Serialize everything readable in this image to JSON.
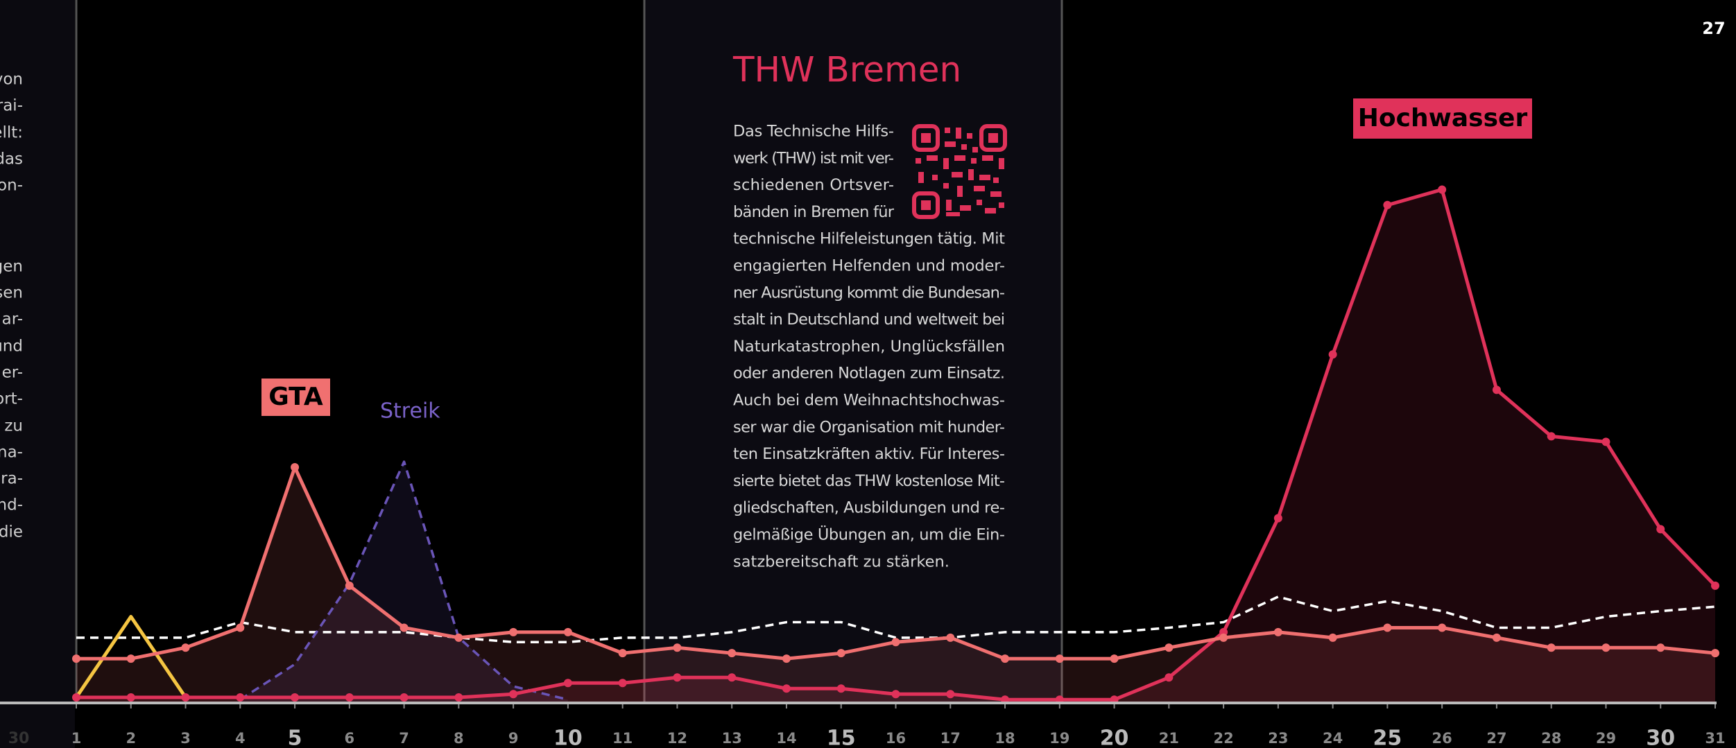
{
  "page_number": "27",
  "previous_axis_label": "30",
  "left_fragments": [
    "von",
    "rai-",
    "ellt:",
    "das",
    "on-",
    "gen",
    "sen",
    "ar-",
    "und",
    "er-",
    "ort-",
    "zu",
    "na-",
    "ra-",
    "nd-",
    "die"
  ],
  "sidebar": {
    "title": "THW Bremen",
    "lines": [
      "Das Technische Hilfs-",
      "werk (THW) ist mit ver-",
      "schiedenen Ortsver-",
      "bänden in Bremen für",
      "technische Hilfeleistungen tätig. Mit",
      "engagierten Helfenden und moder-",
      "ner Ausrüstung kommt die Bundesan-",
      "stalt in Deutschland und weltweit bei",
      "Naturkatastrophen, Unglücksfällen",
      "oder anderen Notlagen zum Einsatz.",
      "Auch bei dem Weihnachtshochwas-",
      "ser war die Organisation mit hunder-",
      "ten Einsatzkräften aktiv. Für Interes-",
      "sierte bietet das THW kostenlose Mit-",
      "gliedschaften, Ausbildungen und re-",
      "gelmäßige Übungen an, um die Ein-",
      "satzbereitschaft zu stärken."
    ]
  },
  "chart_data": {
    "type": "line",
    "annotations": [
      "GTA",
      "Streik",
      "Hochwasser"
    ],
    "x": [
      1,
      2,
      3,
      4,
      5,
      6,
      7,
      8,
      9,
      10,
      11,
      12,
      13,
      14,
      15,
      16,
      17,
      18,
      19,
      20,
      21,
      22,
      23,
      24,
      25,
      26,
      27,
      28,
      29,
      30,
      31
    ],
    "xlim": [
      1,
      31
    ],
    "xticks": [
      1,
      2,
      3,
      4,
      5,
      6,
      7,
      8,
      9,
      10,
      11,
      12,
      13,
      14,
      15,
      16,
      17,
      18,
      19,
      20,
      21,
      22,
      23,
      24,
      25,
      26,
      27,
      28,
      29,
      30,
      31
    ],
    "ylim": [
      0,
      100
    ],
    "series": [
      {
        "color": "#ffffff",
        "dash": true,
        "fill": false,
        "markers": false,
        "values": [
          11.8,
          11.8,
          11.8,
          14.6,
          12.8,
          12.8,
          12.8,
          11.8,
          11,
          11,
          11.8,
          11.8,
          12.8,
          14.6,
          14.6,
          11.8,
          11.8,
          12.8,
          12.8,
          12.8,
          13.6,
          14.6,
          19.2,
          16.6,
          18.4,
          16.6,
          13.6,
          13.6,
          15.6,
          16.6,
          17.4
        ]
      },
      {
        "color": "#f5c542",
        "dash": false,
        "fill": false,
        "markers": false,
        "values": [
          1,
          15.6,
          1,
          null,
          null,
          null,
          null,
          null,
          null,
          null,
          null,
          null,
          null,
          null,
          null,
          null,
          null,
          null,
          null,
          null,
          null,
          null,
          null,
          null,
          null,
          null,
          null,
          null,
          null,
          null,
          null
        ]
      },
      {
        "color": "#6a55b8",
        "dash": true,
        "fill": true,
        "markers": false,
        "values": [
          null,
          null,
          null,
          0.6,
          7,
          21.6,
          43.6,
          11.8,
          3,
          0.6,
          null,
          null,
          null,
          null,
          null,
          null,
          null,
          null,
          null,
          null,
          null,
          null,
          null,
          null,
          null,
          null,
          null,
          null,
          null,
          null,
          null
        ]
      },
      {
        "color": "#e0325a",
        "dash": false,
        "fill": true,
        "markers": true,
        "values": [
          1,
          1,
          1,
          1,
          1,
          1,
          1,
          1,
          1.6,
          3.6,
          3.6,
          4.6,
          4.6,
          2.6,
          2.6,
          1.6,
          1.6,
          0.6,
          0.6,
          0.6,
          4.6,
          12.8,
          33.4,
          63,
          90,
          92.8,
          56.6,
          48.2,
          47.2,
          31.4,
          21.2
        ]
      },
      {
        "color": "#f07070",
        "dash": false,
        "fill": true,
        "markers": true,
        "values": [
          8,
          8,
          10,
          13.6,
          42.6,
          21.2,
          13.6,
          11.8,
          12.8,
          12.8,
          9,
          10,
          9,
          8,
          9,
          11,
          11.8,
          8,
          8,
          8,
          10,
          11.8,
          12.8,
          11.8,
          13.6,
          13.6,
          11.8,
          10,
          10,
          10,
          9
        ]
      }
    ]
  }
}
